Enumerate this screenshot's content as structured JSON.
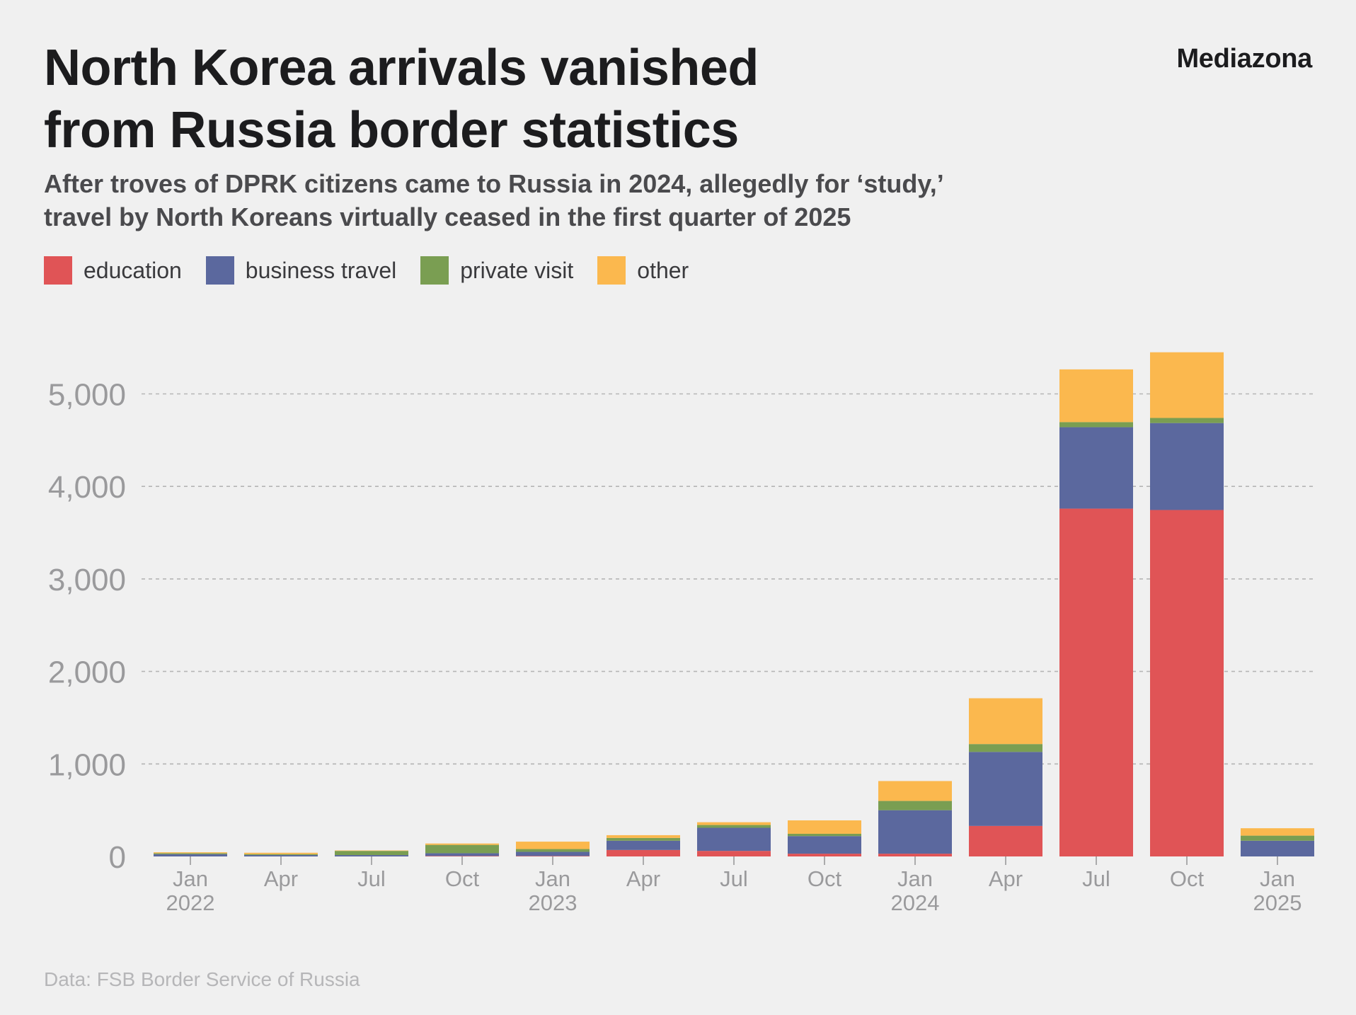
{
  "header": {
    "title_line1": "North Korea arrivals vanished",
    "title_line2": "from Russia border statistics",
    "subtitle_line1": "After troves of DPRK citizens came to Russia in 2024, allegedly for ‘study,’",
    "subtitle_line2": "travel by North Koreans virtually ceased in the first quarter of 2025",
    "brand": "Mediazona"
  },
  "source": "Data: FSB Border Service of Russia",
  "colors": {
    "education": "#e05456",
    "business_travel": "#5b689e",
    "private_visit": "#7a9e52",
    "other": "#fbb84e",
    "grid": "#b5b5b5",
    "axis_text": "#9a9a9c"
  },
  "chart_data": {
    "type": "bar",
    "stacked": true,
    "categories": [
      "Jan 2022",
      "Apr 2022",
      "Jul 2022",
      "Oct 2022",
      "Jan 2023",
      "Apr 2023",
      "Jul 2023",
      "Oct 2023",
      "Jan 2024",
      "Apr 2024",
      "Jul 2024",
      "Oct 2024",
      "Jan 2025"
    ],
    "tick_labels": [
      [
        "Jan",
        "2022"
      ],
      [
        "Apr",
        ""
      ],
      [
        "Jul",
        ""
      ],
      [
        "Oct",
        ""
      ],
      [
        "Jan",
        "2023"
      ],
      [
        "Apr",
        ""
      ],
      [
        "Jul",
        ""
      ],
      [
        "Oct",
        ""
      ],
      [
        "Jan",
        "2024"
      ],
      [
        "Apr",
        ""
      ],
      [
        "Jul",
        ""
      ],
      [
        "Oct",
        ""
      ],
      [
        "Jan",
        "2025"
      ]
    ],
    "series": [
      {
        "name": "education",
        "key": "education",
        "values": [
          0,
          0,
          0,
          5,
          5,
          70,
          60,
          30,
          30,
          330,
          3760,
          3745,
          0
        ]
      },
      {
        "name": "business travel",
        "key": "business_travel",
        "values": [
          25,
          15,
          15,
          30,
          45,
          100,
          250,
          190,
          470,
          800,
          880,
          940,
          170
        ]
      },
      {
        "name": "private visit",
        "key": "private_visit",
        "values": [
          10,
          10,
          45,
          90,
          30,
          30,
          30,
          25,
          100,
          85,
          55,
          55,
          55
        ]
      },
      {
        "name": "other",
        "key": "other",
        "values": [
          10,
          15,
          5,
          15,
          80,
          30,
          30,
          145,
          215,
          495,
          570,
          710,
          80
        ]
      }
    ],
    "y_ticks": [
      0,
      1000,
      2000,
      3000,
      4000,
      5000
    ],
    "y_tick_labels": [
      "0",
      "1,000",
      "2,000",
      "3,000",
      "4,000",
      "5,000"
    ],
    "ylim": [
      0,
      5600
    ],
    "grid": true,
    "legend_position": "top-left"
  }
}
